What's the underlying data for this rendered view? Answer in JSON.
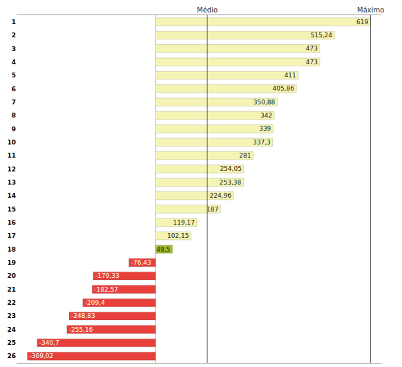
{
  "chart_data": {
    "type": "bar",
    "orientation": "horizontal",
    "categories": [
      "1",
      "2",
      "3",
      "4",
      "5",
      "6",
      "7",
      "8",
      "9",
      "10",
      "11",
      "12",
      "13",
      "14",
      "15",
      "16",
      "17",
      "18",
      "19",
      "20",
      "21",
      "22",
      "23",
      "24",
      "25",
      "26"
    ],
    "values": [
      619,
      515.24,
      473,
      473,
      411,
      405.86,
      350.88,
      342,
      339,
      337.3,
      281,
      254.05,
      253.38,
      224.96,
      187,
      119.17,
      102.15,
      48.5,
      -76.43,
      -179.33,
      -182.57,
      -209.4,
      -248.83,
      -255.16,
      -340.7,
      -369.02
    ],
    "value_labels": [
      "619",
      "515,24",
      "473",
      "473",
      "411",
      "405,86",
      "350,88",
      "342",
      "339",
      "337,3",
      "281",
      "254,05",
      "253,38",
      "224,96",
      "187",
      "119,17",
      "102,15",
      "48,5",
      "-76,43",
      "-179,33",
      "-182,57",
      "-209,4",
      "-248,83",
      "-255,16",
      "-340,7",
      "-369,02"
    ],
    "colors": [
      "#f4f4b4",
      "#f4f4b4",
      "#f4f4b4",
      "#f4f4b4",
      "#f4f4b4",
      "#f4f4b4",
      "#f4f4b4",
      "#f4f4b4",
      "#f4f4b4",
      "#f4f4b4",
      "#f4f4b4",
      "#f4f4b4",
      "#f4f4b4",
      "#f4f4b4",
      "#f4f4b4",
      "#f4f4b4",
      "#f4f4b4",
      "#9dbd2b",
      "#e8413c",
      "#e8413c",
      "#e8413c",
      "#e8413c",
      "#e8413c",
      "#e8413c",
      "#e8413c",
      "#e8413c"
    ],
    "data_labels": true,
    "xlim": [
      -400,
      650
    ],
    "tick_labels": "y",
    "grid": false,
    "annotations": [
      {
        "text": "Médio",
        "x": 149.04
      },
      {
        "text": "Máximo",
        "x": 619
      }
    ]
  }
}
